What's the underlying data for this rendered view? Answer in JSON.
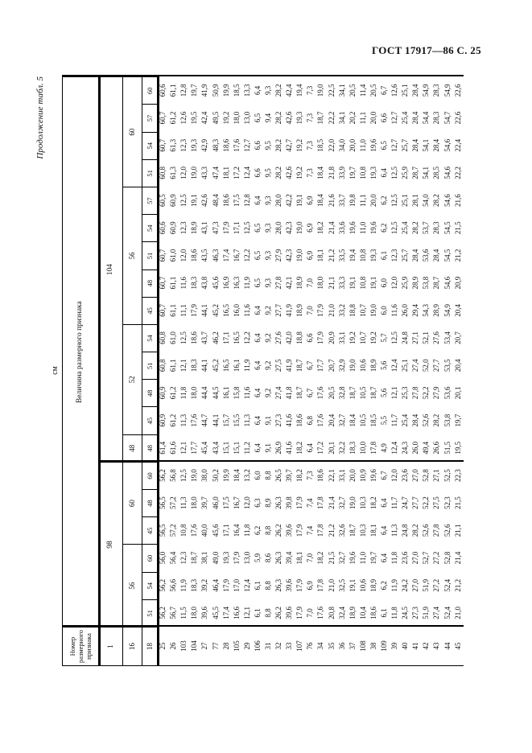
{
  "page": {
    "gost_header": "ГОСТ 17917—86 С. 25",
    "continuation_note": "Продолжение табл. 5",
    "units_label": "см"
  },
  "table": {
    "stub_header_lines": [
      "Номер",
      "размерного",
      "признака"
    ],
    "value_header": "Величина размерного признака",
    "feature_rows": [
      "1",
      "16",
      "18"
    ],
    "height_groups": [
      {
        "height": "98",
        "chest_groups": [
          {
            "chest": "56",
            "waists": [
              "51",
              "54",
              "60"
            ]
          },
          {
            "chest": "60",
            "waists": [
              "45",
              "48",
              "60"
            ]
          }
        ]
      },
      {
        "height": "104",
        "chest_groups": [
          {
            "chest": "48",
            "waists": [
              "48"
            ]
          },
          {
            "chest": "52",
            "waists": [
              "45",
              "48",
              "51",
              "54"
            ]
          },
          {
            "chest": "56",
            "waists": [
              "45",
              "48",
              "51",
              "54",
              "57"
            ]
          },
          {
            "chest": "60",
            "waists": [
              "51",
              "54",
              "57",
              "60"
            ]
          }
        ]
      }
    ],
    "rows": [
      {
        "feature": "25",
        "values": [
          "56,2",
          "56,2",
          "56,0",
          "56,5",
          "56,5",
          "56,2",
          "61,4",
          "60,9",
          "60,9",
          "60,8",
          "60,8",
          "60,7",
          "60,7",
          "60,7",
          "60,6",
          "60,5",
          "60,8",
          "60,7",
          "60,7",
          "60,6"
        ]
      },
      {
        "feature": "26",
        "values": [
          "56,7",
          "56,6",
          "56,4",
          "57,2",
          "57,2",
          "56,8",
          "61,6",
          "61,2",
          "61,2",
          "61,1",
          "61,0",
          "61,1",
          "61,1",
          "61,0",
          "60,9",
          "60,9",
          "61,3",
          "61,3",
          "61,2",
          "61,1"
        ]
      },
      {
        "feature": "103",
        "values": [
          "11,5",
          "11,9",
          "12,3",
          "10,8",
          "11,3",
          "12,5",
          "12,1",
          "11,3",
          "11,8",
          "12,1",
          "12,5",
          "11,1",
          "11,6",
          "12,0",
          "12,3",
          "12,5",
          "12,0",
          "12,3",
          "12,6",
          "12,8"
        ]
      },
      {
        "feature": "104",
        "values": [
          "18,0",
          "18,3",
          "18,7",
          "17,6",
          "18,0",
          "19,0",
          "17,7",
          "17,6",
          "18,0",
          "18,3",
          "18,6",
          "17,9",
          "18,3",
          "18,6",
          "18,9",
          "19,1",
          "19,0",
          "19,3",
          "19,5",
          "19,7"
        ]
      },
      {
        "feature": "27",
        "values": [
          "39,6",
          "39,2",
          "38,1",
          "40,0",
          "39,7",
          "38,0",
          "45,4",
          "44,7",
          "44,4",
          "44,1",
          "43,7",
          "44,1",
          "43,8",
          "43,5",
          "43,1",
          "42,6",
          "43,3",
          "42,9",
          "42,4",
          "41,9"
        ]
      },
      {
        "feature": "77",
        "values": [
          "45,5",
          "46,4",
          "49,0",
          "45,6",
          "46,0",
          "50,2",
          "43,4",
          "44,1",
          "44,5",
          "45,2",
          "46,2",
          "45,2",
          "45,6",
          "46,3",
          "47,3",
          "48,4",
          "47,4",
          "48,3",
          "49,5",
          "50,9"
        ]
      },
      {
        "feature": "28",
        "values": [
          "17,4",
          "17,9",
          "19,3",
          "17,1",
          "17,5",
          "19,9",
          "15,1",
          "15,7",
          "16,1",
          "16,5",
          "17,1",
          "16,5",
          "16,9",
          "17,4",
          "17,9",
          "18,6",
          "18,1",
          "18,6",
          "19,2",
          "19,9"
        ]
      },
      {
        "feature": "105",
        "values": [
          "16,6",
          "17,0",
          "17,9",
          "16,4",
          "16,7",
          "18,4",
          "15,1",
          "15,5",
          "15,8",
          "16,1",
          "16,5",
          "16,0",
          "16,3",
          "16,7",
          "17,1",
          "17,5",
          "17,2",
          "17,6",
          "18,0",
          "18,5"
        ]
      },
      {
        "feature": "29",
        "values": [
          "12,1",
          "12,4",
          "13,0",
          "11,8",
          "12,0",
          "13,2",
          "11,2",
          "11,3",
          "11,6",
          "11,9",
          "12,2",
          "11,6",
          "11,9",
          "12,2",
          "12,5",
          "12,8",
          "12,4",
          "12,7",
          "13,0",
          "13,3"
        ]
      },
      {
        "feature": "106",
        "values": [
          "6,1",
          "6,1",
          "5,9",
          "6,2",
          "6,3",
          "6,0",
          "6,4",
          "6,4",
          "6,4",
          "6,4",
          "6,4",
          "6,4",
          "6,5",
          "6,5",
          "6,5",
          "6,4",
          "6,6",
          "6,6",
          "6,5",
          "6,4"
        ]
      },
      {
        "feature": "31",
        "values": [
          "8,8",
          "8,8",
          "8,6",
          "8,8",
          "8,9",
          "8,8",
          "9,1",
          "9,1",
          "9,2",
          "9,2",
          "9,2",
          "9,2",
          "9,3",
          "9,3",
          "9,3",
          "9,3",
          "9,5",
          "9,5",
          "9,4",
          "9,3"
        ]
      },
      {
        "feature": "32",
        "values": [
          "26,2",
          "26,3",
          "26,3",
          "26,2",
          "26,3",
          "26,5",
          "26,9",
          "27,3",
          "27,4",
          "27,5",
          "27,6",
          "27,7",
          "27,8",
          "27,9",
          "28,0",
          "28,0",
          "28,2",
          "28,2",
          "28,2",
          "28,2"
        ]
      },
      {
        "feature": "33",
        "values": [
          "39,6",
          "39,6",
          "39,4",
          "39,6",
          "39,8",
          "39,7",
          "41,6",
          "41,6",
          "41,8",
          "41,9",
          "42,0",
          "41,9",
          "42,1",
          "42,3",
          "42,3",
          "42,2",
          "42,6",
          "42,7",
          "42,6",
          "42,4"
        ]
      },
      {
        "feature": "107",
        "values": [
          "17,9",
          "17,9",
          "18,1",
          "17,9",
          "17,9",
          "18,2",
          "18,2",
          "18,6",
          "18,7",
          "18,7",
          "18,8",
          "18,9",
          "18,9",
          "19,0",
          "19,0",
          "19,1",
          "19,2",
          "19,2",
          "19,3",
          "19,4"
        ]
      },
      {
        "feature": "76",
        "values": [
          "7,0",
          "6,9",
          "7,0",
          "7,4",
          "7,4",
          "7,3",
          "6,4",
          "6,8",
          "6,7",
          "6,7",
          "6,6",
          "7,0",
          "7,0",
          "6,9",
          "6,9",
          "6,9",
          "7,3",
          "7,3",
          "7,3",
          "7,3"
        ]
      },
      {
        "feature": "34",
        "values": [
          "17,6",
          "17,8",
          "18,2",
          "17,8",
          "17,8",
          "18,6",
          "17,2",
          "17,6",
          "17,6",
          "17,7",
          "17,9",
          "17,9",
          "18,0",
          "18,1",
          "18,2",
          "18,4",
          "18,4",
          "18,5",
          "18,7",
          "19,0"
        ]
      },
      {
        "feature": "35",
        "values": [
          "20,8",
          "21,0",
          "21,5",
          "21,2",
          "21,4",
          "22,1",
          "20,1",
          "20,4",
          "20,5",
          "20,7",
          "20,9",
          "21,0",
          "21,1",
          "21,2",
          "21,4",
          "21,6",
          "21,8",
          "22,0",
          "22,2",
          "22,5"
        ]
      },
      {
        "feature": "36",
        "values": [
          "32,4",
          "32,5",
          "32,7",
          "32,6",
          "32,7",
          "33,1",
          "32,2",
          "32,7",
          "32,8",
          "32,9",
          "33,1",
          "33,2",
          "33,3",
          "33,5",
          "33,6",
          "33,7",
          "33,9",
          "34,0",
          "34,1",
          "34,1"
        ]
      },
      {
        "feature": "37",
        "values": [
          "18,9",
          "19,1",
          "19,6",
          "18,7",
          "19,0",
          "20,0",
          "18,3",
          "18,4",
          "18,7",
          "19,0",
          "19,2",
          "18,8",
          "19,1",
          "19,4",
          "19,6",
          "19,8",
          "19,7",
          "20,0",
          "20,2",
          "20,5"
        ]
      },
      {
        "feature": "108",
        "values": [
          "10,4",
          "10,6",
          "11,0",
          "10,3",
          "10,3",
          "10,9",
          "10,0",
          "10,5",
          "10,5",
          "10,6",
          "10,7",
          "10,7",
          "10,8",
          "10,8",
          "11,0",
          "11,1",
          "10,8",
          "11,0",
          "11,1",
          "11,4"
        ]
      },
      {
        "feature": "38",
        "values": [
          "18,6",
          "18,9",
          "19,7",
          "18,1",
          "18,2",
          "19,6",
          "17,8",
          "18,5",
          "18,7",
          "18,9",
          "19,2",
          "19,0",
          "19,1",
          "19,3",
          "19,6",
          "20,0",
          "19,3",
          "19,6",
          "20,0",
          "20,5"
        ]
      },
      {
        "feature": "109",
        "values": [
          "6,1",
          "6,2",
          "6,4",
          "6,4",
          "6,4",
          "6,7",
          "4,9",
          "5,5",
          "5,6",
          "5,6",
          "5,7",
          "6,0",
          "6,0",
          "6,1",
          "6,2",
          "6,2",
          "6,4",
          "6,5",
          "6,6",
          "6,7"
        ]
      },
      {
        "feature": "39",
        "values": [
          "11,8",
          "11,9",
          "11,8",
          "11,3",
          "11,7",
          "12,0",
          "12,4",
          "11,7",
          "12,1",
          "12,4",
          "12,5",
          "11,6",
          "12,0",
          "12,3",
          "12,5",
          "12,5",
          "12,5",
          "12,7",
          "12,7",
          "12,6"
        ]
      },
      {
        "feature": "40",
        "values": [
          "24,5",
          "24,2",
          "23,6",
          "24,8",
          "24,7",
          "23,6",
          "24,3",
          "25,4",
          "25,3",
          "25,1",
          "24,8",
          "26,0",
          "25,9",
          "25,7",
          "25,4",
          "25,1",
          "25,9",
          "25,7",
          "25,4",
          "25,1"
        ]
      },
      {
        "feature": "41",
        "values": [
          "27,3",
          "27,0",
          "27,0",
          "28,2",
          "27,7",
          "27,0",
          "26,0",
          "28,4",
          "27,8",
          "27,4",
          "27,1",
          "29,4",
          "28,9",
          "28,4",
          "28,2",
          "28,1",
          "28,7",
          "28,4",
          "28,4",
          "28,4"
        ]
      },
      {
        "feature": "42",
        "values": [
          "51,9",
          "51,9",
          "52,7",
          "52,6",
          "52,2",
          "52,8",
          "49,4",
          "52,6",
          "52,2",
          "52,0",
          "52,1",
          "54,3",
          "53,8",
          "53,6",
          "53,7",
          "54,0",
          "54,1",
          "54,1",
          "54,4",
          "54,9"
        ]
      },
      {
        "feature": "43",
        "values": [
          "27,4",
          "27,2",
          "27,2",
          "27,8",
          "27,5",
          "27,1",
          "26,6",
          "28,2",
          "27,9",
          "27,7",
          "27,6",
          "28,9",
          "28,7",
          "28,4",
          "28,3",
          "28,2",
          "28,5",
          "28,4",
          "28,3",
          "28,3"
        ]
      },
      {
        "feature": "44",
        "values": [
          "52,4",
          "52,4",
          "52,8",
          "52,6",
          "52,3",
          "52,5",
          "51,5",
          "53,8",
          "53,6",
          "53,5",
          "53,4",
          "54,9",
          "54,6",
          "54,5",
          "54,5",
          "54,6",
          "54,6",
          "54,6",
          "54,7",
          "54,9"
        ]
      },
      {
        "feature": "45",
        "values": [
          "21,0",
          "21,2",
          "21,4",
          "21,1",
          "21,5",
          "22,3",
          "19,5",
          "19,7",
          "20,1",
          "20,4",
          "20,7",
          "20,4",
          "20,9",
          "21,2",
          "21,5",
          "21,6",
          "22,2",
          "22,4",
          "22,6",
          "22,6"
        ]
      }
    ]
  }
}
